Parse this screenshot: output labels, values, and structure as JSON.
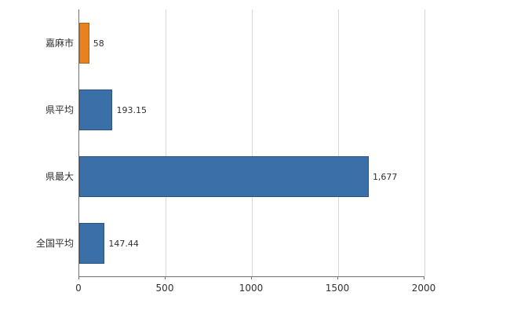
{
  "chart_data": {
    "type": "bar",
    "orientation": "horizontal",
    "title": "",
    "categories": [
      "嘉麻市",
      "県平均",
      "県最大",
      "全国平均"
    ],
    "values": [
      58,
      193.15,
      1677,
      147.44
    ],
    "value_labels": [
      "58",
      "193.15",
      "1,677",
      "147.44"
    ],
    "bar_colors": [
      "#e8821e",
      "#3a6fa8",
      "#3a6fa8",
      "#3a6fa8"
    ],
    "x_ticks": [
      0,
      500,
      1000,
      1500,
      2000
    ],
    "x_tick_labels": [
      "0",
      "500",
      "1000",
      "1500",
      "2000"
    ],
    "xlim": [
      0,
      2000
    ],
    "grid": true,
    "legend": false,
    "colors": {
      "grid": "#d9d9d9",
      "axis": "#707070",
      "text": "#303030",
      "background": "#ffffff"
    }
  }
}
